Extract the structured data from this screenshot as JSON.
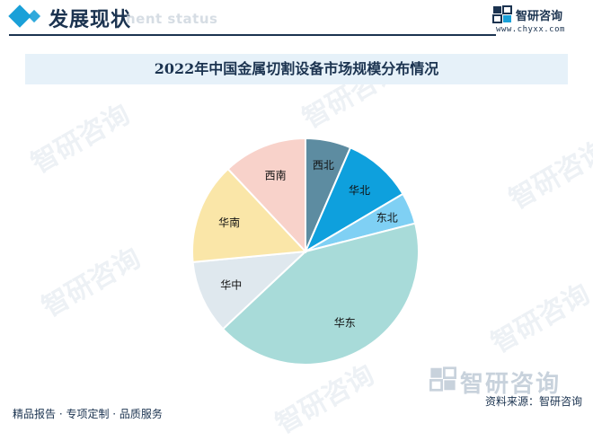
{
  "header": {
    "section_title": "发展现状",
    "section_ghost_text": "nent status",
    "brand_name": "智研咨询",
    "brand_url": "www.chyxx.com"
  },
  "colors": {
    "accent": "#1aa0d8",
    "navy": "#1b3350"
  },
  "chart_data": {
    "type": "pie",
    "title": "2022年中国金属切割设备市场规模分布情况",
    "start_angle_deg": 0,
    "direction": "clockwise",
    "slices": [
      {
        "label": "西北",
        "value": 6.5,
        "color": "#5d8ca1"
      },
      {
        "label": "华北",
        "value": 10.0,
        "color": "#0ea0dd"
      },
      {
        "label": "东北",
        "value": 4.5,
        "color": "#7fd0f4"
      },
      {
        "label": "华东",
        "value": 42.0,
        "color": "#a8dbd9"
      },
      {
        "label": "华中",
        "value": 10.5,
        "color": "#dfe8ee"
      },
      {
        "label": "华南",
        "value": 14.5,
        "color": "#fae6a8"
      },
      {
        "label": "西南",
        "value": 12.0,
        "color": "#f8d2ca"
      }
    ]
  },
  "watermark": {
    "text": "智研咨询"
  },
  "footer": {
    "left_text": "精品报告 · 专项定制 · 品质服务",
    "source_text": "资料来源：智研咨询",
    "logo_text": "智研咨询"
  }
}
